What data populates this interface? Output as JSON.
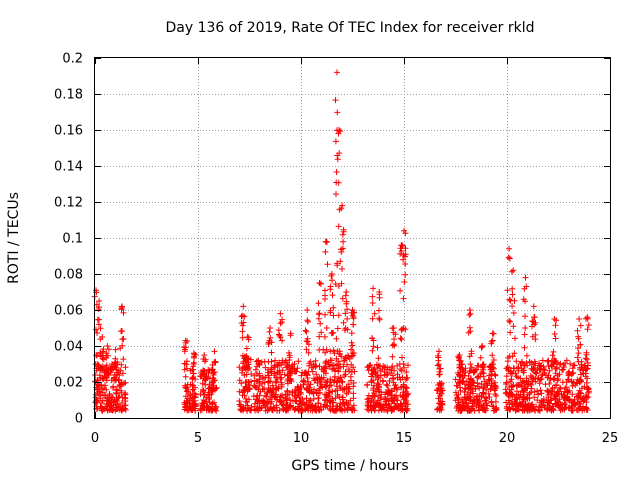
{
  "chart_data": {
    "type": "scatter",
    "title": "Day 136 of 2019, Rate Of TEC Index for receiver rkld",
    "xlabel": "GPS time / hours",
    "ylabel": "ROTI / TECUs",
    "xlim": [
      0,
      25
    ],
    "ylim": [
      0,
      0.2
    ],
    "x_ticks": [
      0,
      5,
      10,
      15,
      20,
      25
    ],
    "x_tick_labels": [
      "0",
      "5",
      "10",
      "15",
      "20",
      "25"
    ],
    "y_ticks": [
      0,
      0.02,
      0.04,
      0.06,
      0.08,
      0.1,
      0.12,
      0.14,
      0.16,
      0.18,
      0.2
    ],
    "y_tick_labels": [
      "0",
      "0.02",
      "0.04",
      "0.06",
      "0.08",
      "0.1",
      "0.12",
      "0.14",
      "0.16",
      "0.18",
      "0.2"
    ],
    "grid": true,
    "marker": "+",
    "color": "#ff0000",
    "series": [
      {
        "name": "ROTI",
        "clusters": [
          {
            "x_range": [
              0.0,
              1.5
            ],
            "base_max": 0.03,
            "peaks": [
              [
                0.05,
                0.071
              ],
              [
                0.2,
                0.065
              ],
              [
                0.35,
                0.045
              ],
              [
                0.6,
                0.04
              ],
              [
                1.0,
                0.038
              ],
              [
                1.3,
                0.062
              ]
            ]
          },
          {
            "x_range": [
              4.3,
              4.9
            ],
            "base_max": 0.028,
            "peaks": [
              [
                4.4,
                0.043
              ],
              [
                4.8,
                0.036
              ]
            ]
          },
          {
            "x_range": [
              5.1,
              5.9
            ],
            "base_max": 0.027,
            "peaks": [
              [
                5.3,
                0.035
              ],
              [
                5.8,
                0.037
              ]
            ]
          },
          {
            "x_range": [
              7.0,
              7.6
            ],
            "base_max": 0.035,
            "peaks": [
              [
                7.2,
                0.062
              ],
              [
                7.4,
                0.045
              ]
            ]
          },
          {
            "x_range": [
              7.7,
              11.0
            ],
            "base_max": 0.032,
            "peaks": [
              [
                8.5,
                0.05
              ],
              [
                9.0,
                0.058
              ],
              [
                9.5,
                0.047
              ],
              [
                10.3,
                0.06
              ],
              [
                10.9,
                0.075
              ]
            ]
          },
          {
            "x_range": [
              11.0,
              12.6
            ],
            "base_max": 0.04,
            "peaks": [
              [
                11.2,
                0.098
              ],
              [
                11.5,
                0.08
              ],
              [
                11.75,
                0.192
              ],
              [
                11.85,
                0.16
              ],
              [
                12.0,
                0.118
              ],
              [
                12.2,
                0.07
              ],
              [
                12.5,
                0.06
              ]
            ]
          },
          {
            "x_range": [
              13.2,
              15.2
            ],
            "base_max": 0.03,
            "peaks": [
              [
                13.5,
                0.072
              ],
              [
                13.8,
                0.07
              ],
              [
                14.5,
                0.05
              ],
              [
                14.9,
                0.096
              ],
              [
                15.0,
                0.104
              ]
            ]
          },
          {
            "x_range": [
              16.6,
              16.9
            ],
            "base_max": 0.02,
            "peaks": [
              [
                16.7,
                0.037
              ]
            ]
          },
          {
            "x_range": [
              17.5,
              19.5
            ],
            "base_max": 0.03,
            "peaks": [
              [
                17.7,
                0.035
              ],
              [
                18.2,
                0.06
              ],
              [
                18.8,
                0.04
              ],
              [
                19.3,
                0.047
              ]
            ]
          },
          {
            "x_range": [
              19.9,
              24.0
            ],
            "base_max": 0.032,
            "peaks": [
              [
                20.1,
                0.094
              ],
              [
                20.3,
                0.082
              ],
              [
                20.9,
                0.078
              ],
              [
                21.3,
                0.062
              ],
              [
                22.3,
                0.055
              ],
              [
                23.5,
                0.055
              ],
              [
                23.9,
                0.056
              ]
            ]
          }
        ]
      }
    ]
  }
}
